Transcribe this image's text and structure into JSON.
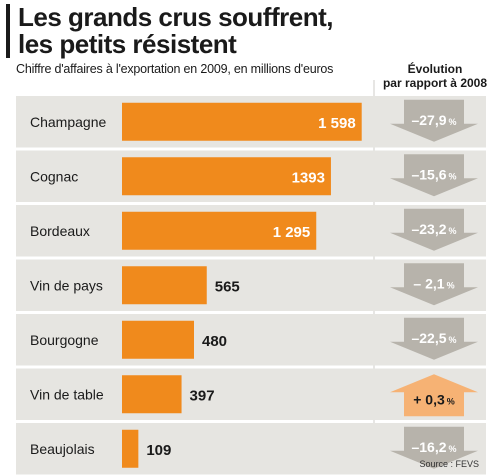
{
  "title_line1": "Les grands crus souffrent,",
  "title_line2": "les petits résistent",
  "subtitle": "Chiffre d'affaires à l'exportation en 2009, en millions d'euros",
  "evolution_header_line1": "Évolution",
  "evolution_header_line2": "par rapport à 2008",
  "source": "Source : FEVS",
  "colors": {
    "bar": "#f08a1c",
    "row_bg": "#e6e5e1",
    "arrow_down": "#b7b3ab",
    "arrow_up": "#f6b274",
    "text_dark": "#1a1a1a",
    "text_light": "#ffffff"
  },
  "chart_data": {
    "type": "bar",
    "orientation": "horizontal",
    "categories": [
      "Champagne",
      "Cognac",
      "Bordeaux",
      "Vin de pays",
      "Bourgogne",
      "Vin de table",
      "Beaujolais"
    ],
    "values": [
      1598,
      1393,
      1295,
      565,
      480,
      397,
      109
    ],
    "value_labels": [
      "1 598",
      "1393",
      "1 295",
      "565",
      "480",
      "397",
      "109"
    ],
    "evolution": [
      -27.9,
      -15.6,
      -23.2,
      -2.1,
      -22.5,
      0.3,
      -16.2
    ],
    "evolution_labels": [
      "–27,9",
      "–15,6",
      "–23,2",
      "– 2,1",
      "–22,5",
      "+ 0,3",
      "–16,2"
    ],
    "evolution_unit": "%",
    "xlim": [
      0,
      1600
    ]
  }
}
